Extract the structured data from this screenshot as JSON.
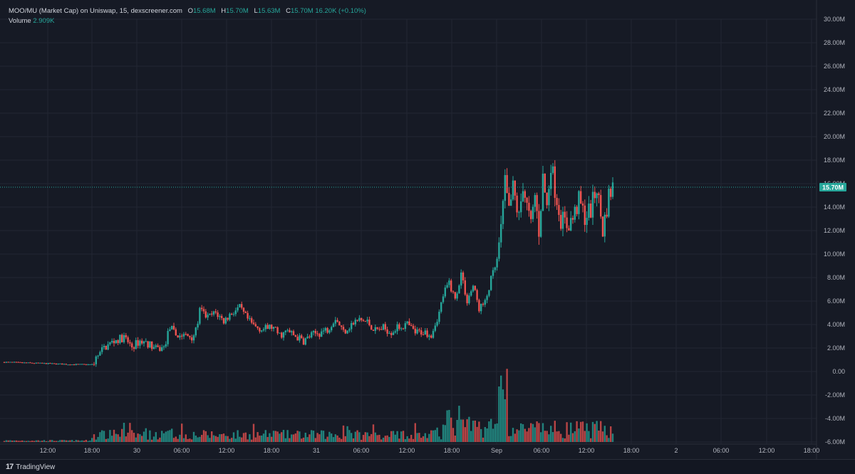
{
  "legend": {
    "symbol": "MOO/MU (Market Cap) on Uniswap, 15, dexscreener.com",
    "o_label": "O",
    "o_value": "15.68M",
    "h_label": "H",
    "h_value": "15.70M",
    "l_label": "L",
    "l_value": "15.63M",
    "c_label": "C",
    "c_value": "15.70M",
    "change": "16.20K (+0.10%)",
    "volume_label": "Volume",
    "volume_value": "2.909K"
  },
  "price_tag": "15.70M",
  "brand": "TradingView",
  "colors": {
    "up": "#26a69a",
    "down": "#ef5350",
    "background": "#161a25",
    "grid": "#222632",
    "text": "#b2b5be"
  },
  "chart_data": {
    "type": "candlestick",
    "series": [
      {
        "name": "MOO/MU (Market Cap)",
        "values_are": "close, millions USD"
      },
      {
        "name": "Volume"
      }
    ],
    "x_ticks": [
      "12:00",
      "18:00",
      "30",
      "06:00",
      "12:00",
      "18:00",
      "31",
      "06:00",
      "12:00",
      "18:00",
      "Sep",
      "06:00",
      "12:00",
      "18:00",
      "2",
      "06:00",
      "12:00",
      "18:00"
    ],
    "y_ticks": [
      "30.00M",
      "28.00M",
      "26.00M",
      "24.00M",
      "22.00M",
      "20.00M",
      "18.00M",
      "16.00M",
      "14.00M",
      "12.00M",
      "10.00M",
      "8.00M",
      "6.00M",
      "4.00M",
      "2.00M",
      "0.00",
      "-2.00M",
      "-4.00M",
      "-6.00M"
    ],
    "ylim": [
      -6,
      30
    ],
    "close_path": [
      [
        0.0,
        0.8
      ],
      [
        3.5,
        0.6
      ],
      [
        4.4,
        0.6
      ],
      [
        4.6,
        1.1
      ],
      [
        5.0,
        2.0
      ],
      [
        5.5,
        2.6
      ],
      [
        6.0,
        2.9
      ],
      [
        6.4,
        2.1
      ],
      [
        6.8,
        2.6
      ],
      [
        7.2,
        2.4
      ],
      [
        7.6,
        1.9
      ],
      [
        8.0,
        2.0
      ],
      [
        8.3,
        3.8
      ],
      [
        8.6,
        3.1
      ],
      [
        9.4,
        3.0
      ],
      [
        9.6,
        3.4
      ],
      [
        9.8,
        5.2
      ],
      [
        10.2,
        4.6
      ],
      [
        10.6,
        5.0
      ],
      [
        11.0,
        4.3
      ],
      [
        11.4,
        5.0
      ],
      [
        11.8,
        5.4
      ],
      [
        12.0,
        4.9
      ],
      [
        12.3,
        4.2
      ],
      [
        12.6,
        3.8
      ],
      [
        13.0,
        3.6
      ],
      [
        13.4,
        3.8
      ],
      [
        13.8,
        3.1
      ],
      [
        14.2,
        3.4
      ],
      [
        14.6,
        3.0
      ],
      [
        15.0,
        2.6
      ],
      [
        15.4,
        3.1
      ],
      [
        15.8,
        3.3
      ],
      [
        16.2,
        3.6
      ],
      [
        16.6,
        4.6
      ],
      [
        17.0,
        3.4
      ],
      [
        17.4,
        4.0
      ],
      [
        17.8,
        4.4
      ],
      [
        18.2,
        4.2
      ],
      [
        18.6,
        3.5
      ],
      [
        19.0,
        3.7
      ],
      [
        19.4,
        3.4
      ],
      [
        19.8,
        3.8
      ],
      [
        20.2,
        4.0
      ],
      [
        20.6,
        3.3
      ],
      [
        21.0,
        3.4
      ],
      [
        21.4,
        3.2
      ],
      [
        21.8,
        5.0
      ],
      [
        22.0,
        6.5
      ],
      [
        22.3,
        7.6
      ],
      [
        22.6,
        6.1
      ],
      [
        22.9,
        8.4
      ],
      [
        23.2,
        6.0
      ],
      [
        23.5,
        7.3
      ],
      [
        23.8,
        5.4
      ],
      [
        24.1,
        5.8
      ],
      [
        24.4,
        7.8
      ],
      [
        24.7,
        9.4
      ],
      [
        24.9,
        12.0
      ],
      [
        25.1,
        16.0
      ],
      [
        25.3,
        13.5
      ],
      [
        25.5,
        15.6
      ],
      [
        25.8,
        13.0
      ],
      [
        26.0,
        16.0
      ],
      [
        26.2,
        14.0
      ],
      [
        26.4,
        12.3
      ],
      [
        26.6,
        15.0
      ],
      [
        26.8,
        12.0
      ],
      [
        27.0,
        16.5
      ],
      [
        27.2,
        14.0
      ],
      [
        27.4,
        17.8
      ],
      [
        27.6,
        15.6
      ],
      [
        27.9,
        13.0
      ],
      [
        28.2,
        12.5
      ],
      [
        28.5,
        13.0
      ],
      [
        28.8,
        14.5
      ],
      [
        29.1,
        13.2
      ],
      [
        29.4,
        13.8
      ],
      [
        29.7,
        15.7
      ],
      [
        30.0,
        12.0
      ],
      [
        30.3,
        15.0
      ],
      [
        30.5,
        15.7
      ]
    ]
  }
}
